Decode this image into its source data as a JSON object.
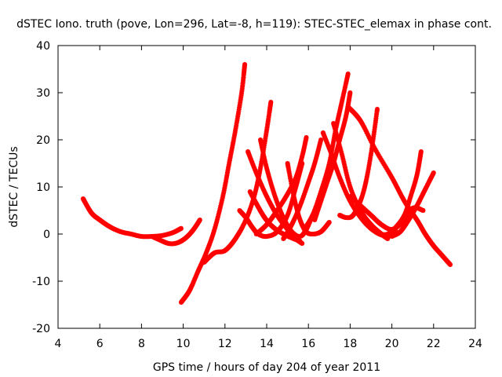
{
  "chart_data": {
    "type": "scatter",
    "title": "dSTEC Iono. truth (pove, Lon=296, Lat=-8, h=119): STEC-STEC_elemax in phase cont.",
    "xlabel": "GPS time / hours of day 204 of year 2011",
    "ylabel": "dSTEC  / TECUs",
    "xlim": [
      4,
      24
    ],
    "ylim": [
      -20,
      40
    ],
    "xticks": [
      "4",
      "6",
      "8",
      "10",
      "12",
      "14",
      "16",
      "18",
      "20",
      "22",
      "24"
    ],
    "yticks": [
      "-20",
      "-10",
      "0",
      "10",
      "20",
      "30",
      "40"
    ],
    "grid": false,
    "legend": "none",
    "marker_color": "#ff0000",
    "series": [
      {
        "x": [
          5.2,
          5.6,
          6.0,
          6.5,
          7.0,
          7.5,
          8.0,
          8.5,
          9.0,
          9.5,
          9.9
        ],
        "y": [
          7.5,
          4.5,
          3.0,
          1.5,
          0.5,
          0.0,
          -0.5,
          -0.5,
          -0.3,
          0.3,
          1.2
        ]
      },
      {
        "x": [
          8.5,
          9.0,
          9.3,
          9.6,
          9.9,
          10.2,
          10.5,
          10.8
        ],
        "y": [
          -0.5,
          -1.5,
          -2.0,
          -2.0,
          -1.5,
          -0.5,
          1.0,
          3.0
        ]
      },
      {
        "x": [
          9.9,
          10.3,
          10.7,
          11.1,
          11.5,
          11.9,
          12.2,
          12.5,
          12.8,
          12.95
        ],
        "y": [
          -14.5,
          -12.0,
          -8.0,
          -4.0,
          1.0,
          8.0,
          15.0,
          22.0,
          30.0,
          36.0
        ]
      },
      {
        "x": [
          11.0,
          11.5,
          12.0,
          12.5,
          13.0,
          13.4,
          13.7,
          14.0,
          14.2
        ],
        "y": [
          -6.0,
          -4.0,
          -3.5,
          -1.0,
          3.0,
          8.0,
          14.0,
          22.0,
          28.0
        ]
      },
      {
        "x": [
          12.7,
          13.0,
          13.3,
          13.6,
          14.0,
          14.5,
          15.0,
          15.4,
          15.7
        ],
        "y": [
          5.0,
          3.5,
          1.5,
          0.0,
          -0.5,
          0.5,
          4.0,
          10.0,
          15.0
        ]
      },
      {
        "x": [
          13.2,
          13.5,
          13.9,
          14.3,
          14.8,
          15.3,
          15.6
        ],
        "y": [
          9.0,
          6.5,
          3.5,
          1.5,
          0.0,
          -1.0,
          -1.5
        ]
      },
      {
        "x": [
          13.7,
          14.0,
          14.4,
          14.8,
          15.2,
          15.6,
          15.9,
          16.2
        ],
        "y": [
          20.0,
          14.0,
          8.0,
          3.5,
          0.5,
          -0.5,
          1.0,
          4.0
        ]
      },
      {
        "x": [
          13.1,
          13.5,
          14.0,
          14.5,
          15.0,
          15.4,
          15.7
        ],
        "y": [
          17.5,
          13.0,
          8.0,
          4.0,
          1.0,
          -1.0,
          -2.0
        ]
      },
      {
        "x": [
          13.5,
          14.0,
          14.5,
          15.0,
          15.4,
          15.7,
          15.9
        ],
        "y": [
          0.0,
          2.0,
          5.0,
          8.5,
          12.0,
          16.5,
          20.5
        ]
      },
      {
        "x": [
          14.8,
          15.2,
          15.6,
          16.0,
          16.3,
          16.6
        ],
        "y": [
          -1.0,
          2.0,
          6.0,
          11.0,
          15.0,
          20.0
        ]
      },
      {
        "x": [
          15.0,
          15.3,
          15.6,
          15.9,
          16.2,
          16.6,
          17.0
        ],
        "y": [
          15.0,
          8.0,
          3.0,
          0.5,
          0.0,
          0.5,
          2.5
        ]
      },
      {
        "x": [
          15.8,
          16.2,
          16.6,
          17.0,
          17.3,
          17.6,
          17.9
        ],
        "y": [
          1.0,
          4.0,
          9.0,
          15.0,
          22.0,
          28.0,
          34.0
        ]
      },
      {
        "x": [
          16.3,
          16.6,
          16.9,
          17.2,
          17.5,
          17.8,
          18.0
        ],
        "y": [
          3.0,
          7.0,
          11.0,
          15.0,
          20.0,
          25.0,
          30.0
        ]
      },
      {
        "x": [
          16.7,
          17.1,
          17.5,
          18.0,
          18.6,
          19.2,
          19.8,
          20.2
        ],
        "y": [
          21.5,
          17.0,
          12.0,
          7.0,
          3.0,
          0.5,
          -0.5,
          0.5
        ]
      },
      {
        "x": [
          17.2,
          17.6,
          18.0,
          18.5,
          19.0,
          19.5,
          19.8
        ],
        "y": [
          23.5,
          17.0,
          10.0,
          5.0,
          2.0,
          0.0,
          -1.0
        ]
      },
      {
        "x": [
          17.5,
          17.8,
          18.1,
          18.4,
          18.7,
          19.0,
          19.3
        ],
        "y": [
          4.0,
          3.5,
          3.8,
          6.0,
          10.0,
          17.0,
          26.5
        ]
      },
      {
        "x": [
          17.9,
          18.5,
          19.2,
          20.0,
          20.6,
          21.2,
          21.6,
          22.0,
          22.4,
          22.8
        ],
        "y": [
          27.0,
          24.0,
          18.0,
          12.0,
          7.0,
          3.0,
          0.0,
          -2.5,
          -4.5,
          -6.5
        ]
      },
      {
        "x": [
          18.0,
          18.5,
          19.0,
          19.5,
          20.0,
          20.5,
          21.0,
          21.5
        ],
        "y": [
          8.0,
          6.0,
          4.0,
          2.0,
          1.0,
          2.5,
          5.5,
          5.0
        ]
      },
      {
        "x": [
          19.4,
          19.8,
          20.2,
          20.6,
          20.9,
          21.2,
          21.4
        ],
        "y": [
          0.0,
          0.0,
          1.5,
          4.0,
          8.0,
          12.5,
          17.5
        ]
      },
      {
        "x": [
          20.0,
          20.4,
          20.8,
          21.2,
          21.6,
          22.0
        ],
        "y": [
          -0.5,
          0.5,
          3.0,
          6.0,
          9.5,
          13.0
        ]
      }
    ]
  }
}
